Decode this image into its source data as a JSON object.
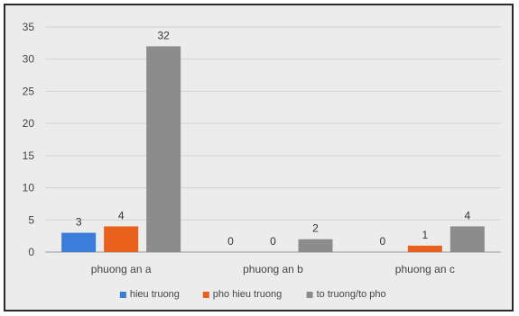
{
  "chart_data": {
    "type": "bar",
    "categories": [
      "phuong an a",
      "phuong an b",
      "phuong an c"
    ],
    "series": [
      {
        "name": "hieu truong",
        "values": [
          3,
          0,
          0
        ],
        "color": "#3b7dd8"
      },
      {
        "name": "pho hieu truong",
        "values": [
          4,
          0,
          1
        ],
        "color": "#e8601c"
      },
      {
        "name": "to truong/to pho",
        "values": [
          32,
          2,
          4
        ],
        "color": "#8c8c8c"
      }
    ],
    "ylim": [
      0,
      35
    ],
    "yticks": [
      0,
      5,
      10,
      15,
      20,
      25,
      30,
      35
    ],
    "grid": true,
    "legend": "bottom"
  }
}
